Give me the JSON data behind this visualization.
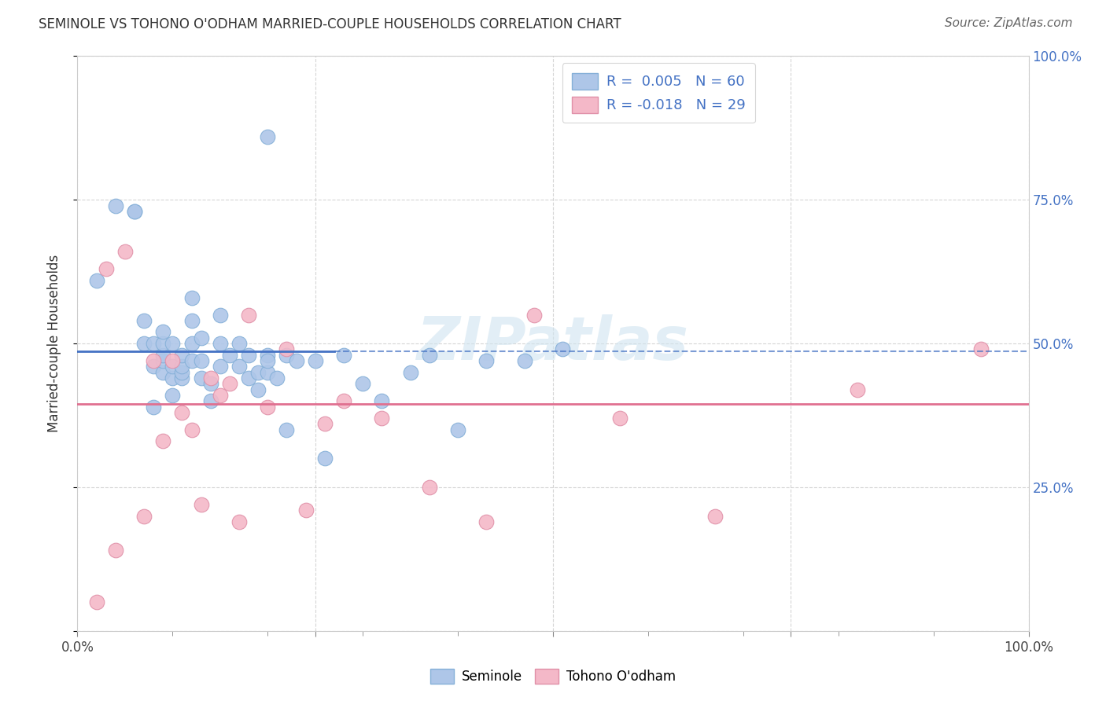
{
  "title": "SEMINOLE VS TOHONO O'ODHAM MARRIED-COUPLE HOUSEHOLDS CORRELATION CHART",
  "source": "Source: ZipAtlas.com",
  "ylabel": "Married-couple Households",
  "xlim": [
    0,
    1.0
  ],
  "ylim": [
    0,
    1.0
  ],
  "seminole_color": "#aec6e8",
  "tohono_color": "#f4b8c8",
  "seminole_line_color": "#4472c4",
  "tohono_line_color": "#e07090",
  "seminole_line_y": 0.487,
  "tohono_line_y": 0.395,
  "watermark_text": "ZIPatlas",
  "legend_line1": "R =  0.005   N = 60",
  "legend_line2": "R = -0.018   N = 29",
  "seminole_x": [
    0.02,
    0.04,
    0.06,
    0.06,
    0.07,
    0.07,
    0.08,
    0.08,
    0.08,
    0.09,
    0.09,
    0.09,
    0.09,
    0.09,
    0.1,
    0.1,
    0.1,
    0.1,
    0.11,
    0.11,
    0.11,
    0.11,
    0.12,
    0.12,
    0.12,
    0.12,
    0.13,
    0.13,
    0.13,
    0.14,
    0.14,
    0.15,
    0.15,
    0.15,
    0.16,
    0.17,
    0.17,
    0.18,
    0.18,
    0.19,
    0.19,
    0.2,
    0.2,
    0.21,
    0.22,
    0.22,
    0.23,
    0.25,
    0.26,
    0.28,
    0.3,
    0.32,
    0.35,
    0.37,
    0.4,
    0.43,
    0.47,
    0.51,
    0.2,
    0.2
  ],
  "seminole_y": [
    0.61,
    0.74,
    0.73,
    0.73,
    0.5,
    0.54,
    0.39,
    0.46,
    0.5,
    0.45,
    0.47,
    0.48,
    0.5,
    0.52,
    0.41,
    0.44,
    0.46,
    0.5,
    0.44,
    0.45,
    0.46,
    0.48,
    0.47,
    0.5,
    0.54,
    0.58,
    0.44,
    0.47,
    0.51,
    0.4,
    0.43,
    0.46,
    0.5,
    0.55,
    0.48,
    0.46,
    0.5,
    0.44,
    0.48,
    0.42,
    0.45,
    0.45,
    0.48,
    0.44,
    0.48,
    0.35,
    0.47,
    0.47,
    0.3,
    0.48,
    0.43,
    0.4,
    0.45,
    0.48,
    0.35,
    0.47,
    0.47,
    0.49,
    0.86,
    0.47
  ],
  "tohono_x": [
    0.02,
    0.03,
    0.04,
    0.05,
    0.07,
    0.08,
    0.09,
    0.1,
    0.11,
    0.12,
    0.13,
    0.14,
    0.15,
    0.16,
    0.17,
    0.18,
    0.2,
    0.22,
    0.24,
    0.26,
    0.28,
    0.32,
    0.37,
    0.43,
    0.48,
    0.57,
    0.67,
    0.82,
    0.95
  ],
  "tohono_y": [
    0.05,
    0.63,
    0.14,
    0.66,
    0.2,
    0.47,
    0.33,
    0.47,
    0.38,
    0.35,
    0.22,
    0.44,
    0.41,
    0.43,
    0.19,
    0.55,
    0.39,
    0.49,
    0.21,
    0.36,
    0.4,
    0.37,
    0.25,
    0.19,
    0.55,
    0.37,
    0.2,
    0.42,
    0.49
  ]
}
